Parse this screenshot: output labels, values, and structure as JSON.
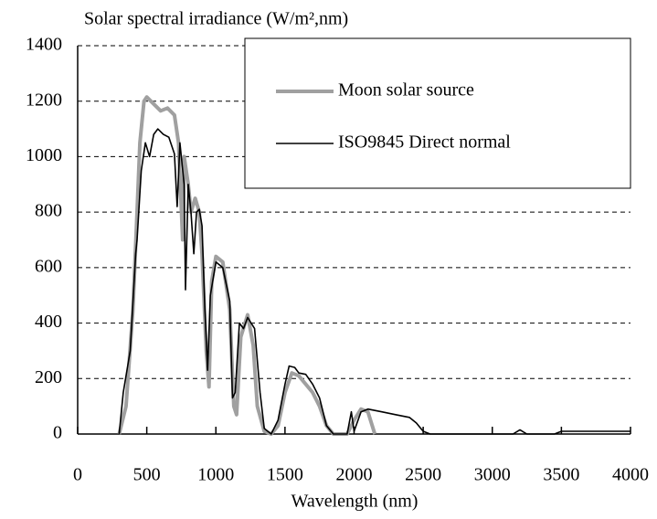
{
  "chart_data": {
    "type": "line",
    "title": "Solar spectral irradiance (W/m²,nm)",
    "x_label": "Wavelength (nm)",
    "xlim": [
      0,
      4000
    ],
    "xticks": [
      0,
      500,
      1000,
      1500,
      2000,
      2500,
      3000,
      3500,
      4000
    ],
    "ylim": [
      0,
      1400
    ],
    "yticks": [
      0,
      200,
      400,
      600,
      800,
      1000,
      1200,
      1400
    ],
    "grid": true,
    "legend": "upper right",
    "series": [
      {
        "name": "Moon solar source",
        "color": "#a0a0a0",
        "width": 4,
        "x": [
          300,
          350,
          400,
          430,
          450,
          480,
          500,
          550,
          600,
          650,
          700,
          730,
          760,
          770,
          800,
          820,
          850,
          880,
          900,
          930,
          950,
          970,
          1000,
          1050,
          1100,
          1130,
          1150,
          1180,
          1230,
          1270,
          1300,
          1350,
          1400,
          1450,
          1500,
          1550,
          1600,
          1700,
          1750,
          1800,
          1850,
          1950,
          2000,
          2050,
          2100,
          2150
        ],
        "values": [
          0,
          100,
          450,
          800,
          1050,
          1200,
          1215,
          1190,
          1165,
          1175,
          1150,
          1050,
          700,
          1000,
          900,
          800,
          850,
          800,
          650,
          300,
          170,
          550,
          640,
          620,
          450,
          100,
          70,
          350,
          430,
          320,
          100,
          10,
          0,
          30,
          150,
          220,
          210,
          150,
          100,
          30,
          0,
          0,
          50,
          90,
          80,
          0
        ]
      },
      {
        "name": "ISO9845 Direct normal",
        "color": "#000000",
        "width": 1.6,
        "x": [
          300,
          330,
          380,
          420,
          430,
          460,
          490,
          520,
          550,
          580,
          620,
          660,
          700,
          720,
          740,
          770,
          780,
          800,
          820,
          840,
          860,
          880,
          900,
          920,
          940,
          960,
          1000,
          1050,
          1100,
          1120,
          1140,
          1170,
          1200,
          1230,
          1280,
          1320,
          1350,
          1400,
          1450,
          1500,
          1530,
          1570,
          1600,
          1650,
          1700,
          1750,
          1800,
          1850,
          1950,
          1980,
          2000,
          2050,
          2100,
          2200,
          2300,
          2400,
          2450,
          2500,
          2550,
          3150,
          3200,
          3250,
          3450,
          3500,
          4000
        ],
        "values": [
          0,
          150,
          300,
          650,
          700,
          950,
          1050,
          1000,
          1080,
          1100,
          1080,
          1070,
          1010,
          820,
          1050,
          900,
          520,
          900,
          800,
          650,
          800,
          810,
          750,
          450,
          230,
          500,
          620,
          600,
          480,
          130,
          150,
          400,
          380,
          420,
          380,
          150,
          20,
          0,
          50,
          180,
          245,
          240,
          220,
          215,
          180,
          130,
          30,
          0,
          0,
          80,
          10,
          80,
          90,
          80,
          70,
          60,
          40,
          10,
          0,
          0,
          15,
          0,
          0,
          10,
          10
        ]
      }
    ]
  }
}
